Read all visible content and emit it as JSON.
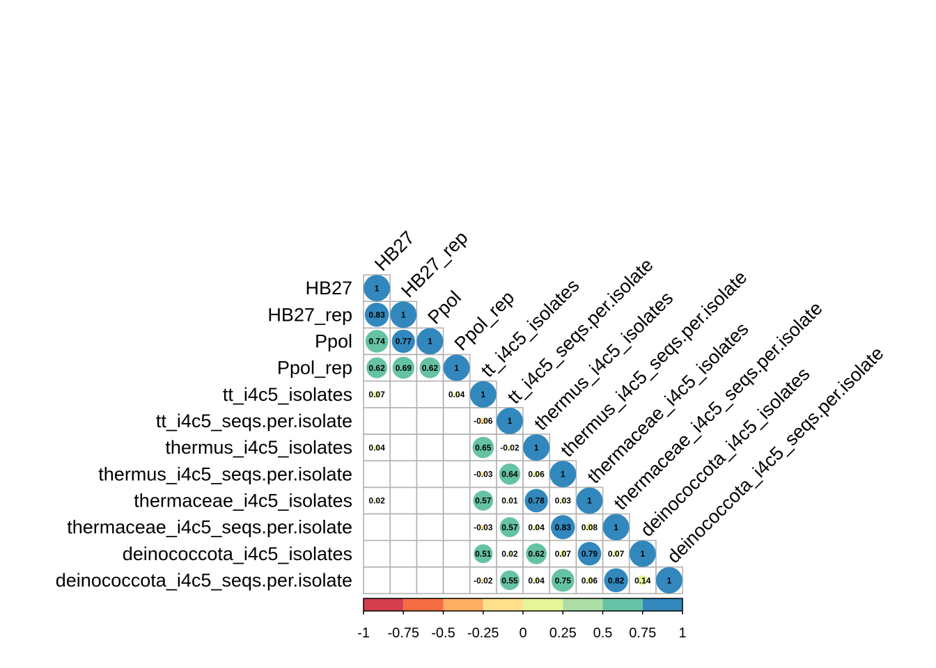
{
  "chart_data": {
    "type": "heatmap",
    "style": "correlation-circle-lower-triangle",
    "variables": [
      "HB27",
      "HB27_rep",
      "Ppol",
      "Ppol_rep",
      "tt_i4c5_isolates",
      "tt_i4c5_seqs.per.isolate",
      "thermus_i4c5_isolates",
      "thermus_i4c5_seqs.per.isolate",
      "thermaceae_i4c5_isolates",
      "thermaceae_i4c5_seqs.per.isolate",
      "deinococcota_i4c5_isolates",
      "deinococcota_i4c5_seqs.per.isolate"
    ],
    "matrix": [
      [
        1
      ],
      [
        0.83,
        1
      ],
      [
        0.74,
        0.77,
        1
      ],
      [
        0.62,
        0.69,
        0.62,
        1
      ],
      [
        0.07,
        null,
        null,
        0.04,
        1
      ],
      [
        null,
        null,
        null,
        null,
        -0.06,
        1
      ],
      [
        0.04,
        null,
        null,
        null,
        0.65,
        -0.02,
        1
      ],
      [
        null,
        null,
        null,
        null,
        -0.03,
        0.64,
        0.06,
        1
      ],
      [
        0.02,
        null,
        null,
        null,
        0.57,
        0.01,
        0.78,
        0.03,
        1
      ],
      [
        null,
        null,
        null,
        null,
        -0.03,
        0.57,
        0.04,
        0.83,
        0.08,
        1
      ],
      [
        null,
        null,
        null,
        null,
        0.51,
        0.02,
        0.62,
        0.07,
        0.79,
        0.07,
        1
      ],
      [
        null,
        null,
        null,
        null,
        -0.02,
        0.55,
        0.04,
        0.75,
        0.06,
        0.82,
        0.14,
        1
      ]
    ],
    "value_labels": [
      [
        "1"
      ],
      [
        "0.83",
        "1"
      ],
      [
        "0.74",
        "0.77",
        "1"
      ],
      [
        "0.62",
        "0.69",
        "0.62",
        "1"
      ],
      [
        "0.07",
        null,
        null,
        "0.04",
        "1"
      ],
      [
        null,
        null,
        null,
        null,
        "-0.06",
        "1"
      ],
      [
        "0.04",
        null,
        null,
        null,
        "0.65",
        "-0.02",
        "1"
      ],
      [
        null,
        null,
        null,
        null,
        "-0.03",
        "0.64",
        "0.06",
        "1"
      ],
      [
        "0.02",
        null,
        null,
        null,
        "0.57",
        "0.01",
        "0.78",
        "0.03",
        "1"
      ],
      [
        null,
        null,
        null,
        null,
        "-0.03",
        "0.57",
        "0.04",
        "0.83",
        "0.08",
        "1"
      ],
      [
        null,
        null,
        null,
        null,
        "0.51",
        "0.02",
        "0.62",
        "0.07",
        "0.79",
        "0.07",
        "1"
      ],
      [
        null,
        null,
        null,
        null,
        "-0.02",
        "0.55",
        "0.04",
        "0.75",
        "0.06",
        "0.82",
        "0.14",
        "1"
      ]
    ],
    "colorbar": {
      "range": [
        -1,
        1
      ],
      "breaks": [
        -1,
        -0.75,
        -0.5,
        -0.25,
        0,
        0.25,
        0.5,
        0.75,
        1
      ],
      "tick_labels": [
        "-1",
        "-0.75",
        "-0.5",
        "-0.25",
        "0",
        "0.25",
        "0.5",
        "0.75",
        "1"
      ],
      "colors": [
        "#d53e4f",
        "#f46d43",
        "#fdae61",
        "#fee08b",
        "#e6f598",
        "#abdda4",
        "#66c2a5",
        "#3288bd"
      ]
    },
    "grid": true,
    "legend_placement": "bottom",
    "colors": {
      "grid_line": "#b3b3b3",
      "text": "#000000"
    }
  }
}
